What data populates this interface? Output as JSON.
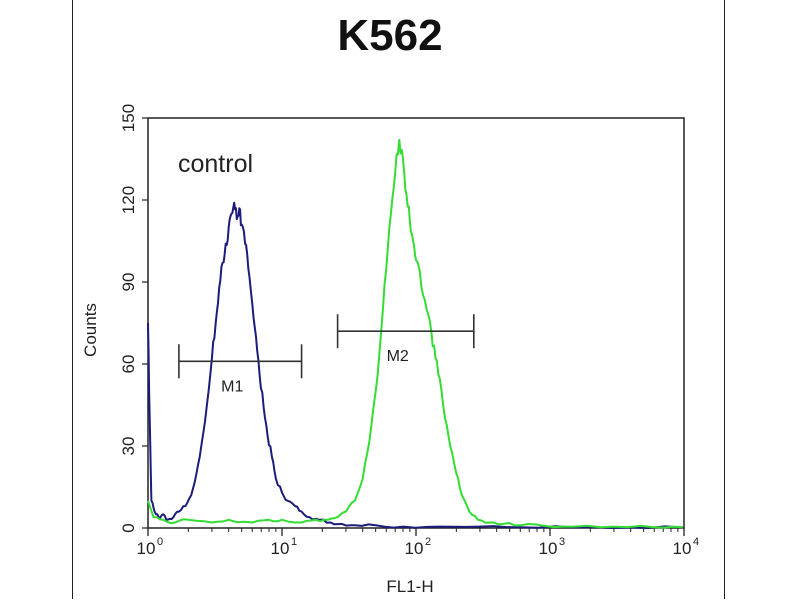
{
  "chart_data": {
    "type": "line",
    "title": "K562",
    "xlabel": "FL1-H",
    "ylabel": "Counts",
    "x_scale": "log",
    "xlim": [
      1,
      10000
    ],
    "ylim": [
      0,
      150
    ],
    "x_ticks": [
      {
        "base": "10",
        "exp": "0",
        "value": 1
      },
      {
        "base": "10",
        "exp": "1",
        "value": 10
      },
      {
        "base": "10",
        "exp": "2",
        "value": 100
      },
      {
        "base": "10",
        "exp": "3",
        "value": 1000
      },
      {
        "base": "10",
        "exp": "4",
        "value": 10000
      }
    ],
    "y_ticks": [
      "0",
      "30",
      "60",
      "90",
      "120",
      "150"
    ],
    "y_tick_values": [
      0,
      30,
      60,
      90,
      120,
      150
    ],
    "grid": false,
    "annotation": "control",
    "gates": [
      {
        "label": "M1",
        "x_start": 1.7,
        "x_end": 14,
        "y": 61
      },
      {
        "label": "M2",
        "x_start": 26,
        "x_end": 270,
        "y": 72
      }
    ],
    "series": [
      {
        "color": "#1c1c7a",
        "x": [
          1.0,
          1.03,
          1.06,
          1.12,
          1.2,
          1.3,
          1.4,
          1.55,
          1.7,
          1.9,
          2.1,
          2.3,
          2.5,
          2.75,
          3.0,
          3.2,
          3.4,
          3.6,
          3.8,
          4.0,
          4.2,
          4.4,
          4.6,
          4.8,
          5.0,
          5.3,
          5.6,
          6.0,
          6.4,
          6.8,
          7.3,
          7.8,
          8.4,
          9.0,
          10.0,
          11.0,
          12.5,
          14.0,
          16.0,
          19.0,
          23.0,
          28.0,
          35.0,
          50.0,
          80.0,
          150.0,
          300.0,
          600.0,
          1500.0,
          4000.0,
          9800.0
        ],
        "y": [
          75,
          40,
          10,
          6,
          4,
          5,
          3,
          4,
          6,
          8,
          12,
          20,
          30,
          45,
          62,
          75,
          88,
          97,
          104,
          110,
          115,
          119,
          113,
          117,
          111,
          104,
          95,
          82,
          70,
          56,
          44,
          34,
          26,
          18,
          13,
          10,
          8,
          6,
          4,
          3,
          2,
          1.5,
          1,
          1,
          0.5,
          0.5,
          0.5,
          0.3,
          0.2,
          0.2,
          0.2
        ]
      },
      {
        "color": "#33dd33",
        "x": [
          1.0,
          1.1,
          1.3,
          1.6,
          2.0,
          3.0,
          4.0,
          6.0,
          8.0,
          10.0,
          14.0,
          18.0,
          22.0,
          26.0,
          30.0,
          35.0,
          40.0,
          45.0,
          50.0,
          55.0,
          60.0,
          65.0,
          70.0,
          75.0,
          80.0,
          85.0,
          90.0,
          95.0,
          100.0,
          110.0,
          120.0,
          130.0,
          140.0,
          150.0,
          165.0,
          180.0,
          200.0,
          220.0,
          250.0,
          290.0,
          350.0,
          450.0,
          600.0,
          900.0,
          1500.0,
          3000.0,
          6000.0,
          9800.0
        ],
        "y": [
          10,
          4,
          3,
          2,
          3,
          2,
          3,
          2,
          3,
          3,
          2,
          3,
          3,
          4,
          6,
          10,
          18,
          32,
          50,
          72,
          95,
          115,
          130,
          142,
          135,
          122,
          112,
          105,
          98,
          88,
          80,
          72,
          62,
          55,
          40,
          30,
          20,
          12,
          6,
          3,
          2,
          1.5,
          1,
          0.8,
          0.5,
          0.5,
          0.3,
          0.3
        ]
      }
    ]
  }
}
